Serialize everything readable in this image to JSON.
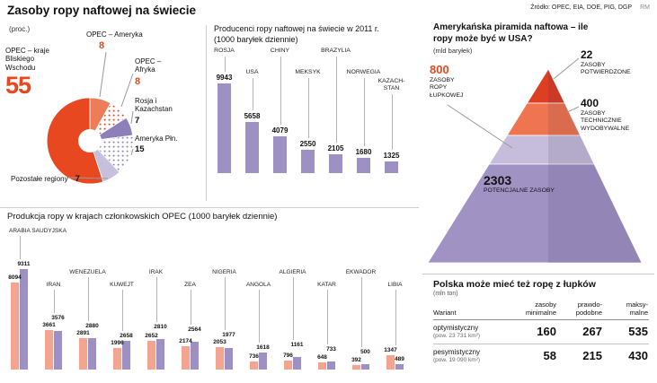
{
  "header": {
    "title": "Zasoby ropy naftowej na świecie",
    "source": "Źródło: OPEC, EIA, DOE, PIG, DGP",
    "credit": "RM"
  },
  "colors": {
    "accent_red": "#e8481f",
    "bar_purple": "#9d91c3",
    "bar_salmon": "#f2a590"
  },
  "chart_data": [
    {
      "id": "world_reserves_share",
      "type": "pie",
      "unit": "(proc.)",
      "legend_position": "around",
      "slices": [
        {
          "label": "OPEC – Ameryka",
          "value": 8,
          "color": "#ee7c58",
          "pattern": "none"
        },
        {
          "label": "OPEC – Afryka",
          "value": 8,
          "color": "#e8481f",
          "pattern": "dots"
        },
        {
          "label": "Rosja i Kazachstan",
          "value": 7,
          "color": "#8d80ba",
          "pattern": "none"
        },
        {
          "label": "Ameryka Płn.",
          "value": 15,
          "color": "#8d80ba",
          "pattern": "dots"
        },
        {
          "label": "Pozostałe regiony",
          "value": 7,
          "color": "#c7c0dc",
          "pattern": "none"
        },
        {
          "label": "OPEC – kraje Bliskiego Wschodu",
          "value": 55,
          "color": "#e8481f",
          "pattern": "none"
        }
      ]
    },
    {
      "id": "world_producers_2011",
      "type": "bar",
      "title": "Producenci ropy naftowej na świecie w 2011 r. (1000 baryłek dziennie)",
      "categories": [
        "ROSJA",
        "USA",
        "CHINY",
        "MEKSYK",
        "BRAZYLIA",
        "NORWEGIA",
        "KAZACH-STAN"
      ],
      "values": [
        9943,
        5658,
        4079,
        2550,
        2105,
        1680,
        1325
      ],
      "ylim": [
        0,
        10000
      ],
      "grid": false
    },
    {
      "id": "opec_production",
      "type": "bar",
      "title": "Produkcja ropy w krajach członkowskich OPEC  (1000 baryłek dziennie)",
      "categories": [
        "ARABIA SAUDYJSKA",
        "IRAN",
        "WENEZUELA",
        "KUWEJT",
        "IRAK",
        "ZEA",
        "NIGERIA",
        "ANGOLA",
        "ALGIERIA",
        "KATAR",
        "EKWADOR",
        "LIBIA"
      ],
      "series": [
        {
          "name": "salmon",
          "color": "#f2a590",
          "values": [
            8094,
            3661,
            2891,
            1996,
            2652,
            2174,
            2053,
            736,
            796,
            648,
            392,
            1347
          ]
        },
        {
          "name": "purple",
          "color": "#9d91c3",
          "values": [
            9311,
            3576,
            2880,
            2658,
            2810,
            2564,
            1977,
            1618,
            1161,
            733,
            500,
            489
          ]
        }
      ],
      "ylim": [
        0,
        9500
      ],
      "grid": false
    },
    {
      "id": "us_oil_pyramid",
      "type": "pyramid",
      "title": "Amerykańska piramida naftowa – ile ropy może być w USA?",
      "unit": "(mld baryłek)",
      "layers": [
        {
          "value": "22",
          "label": "ZASOBY POTWIERDZONE",
          "color": "#dd3f23"
        },
        {
          "value": "400",
          "label": "ZASOBY TECHNICZNIE WYDOBYWALNE",
          "color": "#ee7550"
        },
        {
          "value": "800",
          "label": "ZASOBY ROPY ŁUPKOWEJ",
          "color": "#c5bddb"
        },
        {
          "value": "2303",
          "label": "POTENCJALNE ZASOBY",
          "color": "#a093c4"
        }
      ]
    },
    {
      "id": "poland_shale",
      "type": "table",
      "title": "Polska może mieć też ropę z łupków",
      "unit": "(mln ton)",
      "col0": "Wariant",
      "columns": [
        {
          "line1": "zasoby",
          "line2": "minimalne"
        },
        {
          "line1": "prawdo-",
          "line2": "podobne"
        },
        {
          "line1": "maksy-",
          "line2": "malne"
        }
      ],
      "rows": [
        {
          "name": "optymistyczny",
          "area": "(pow. 23 731 km²)",
          "values": [
            "160",
            "267",
            "535"
          ]
        },
        {
          "name": "pesymistyczny",
          "area": "(pow. 19 090 km²)",
          "values": [
            "58",
            "215",
            "430"
          ]
        }
      ]
    }
  ]
}
